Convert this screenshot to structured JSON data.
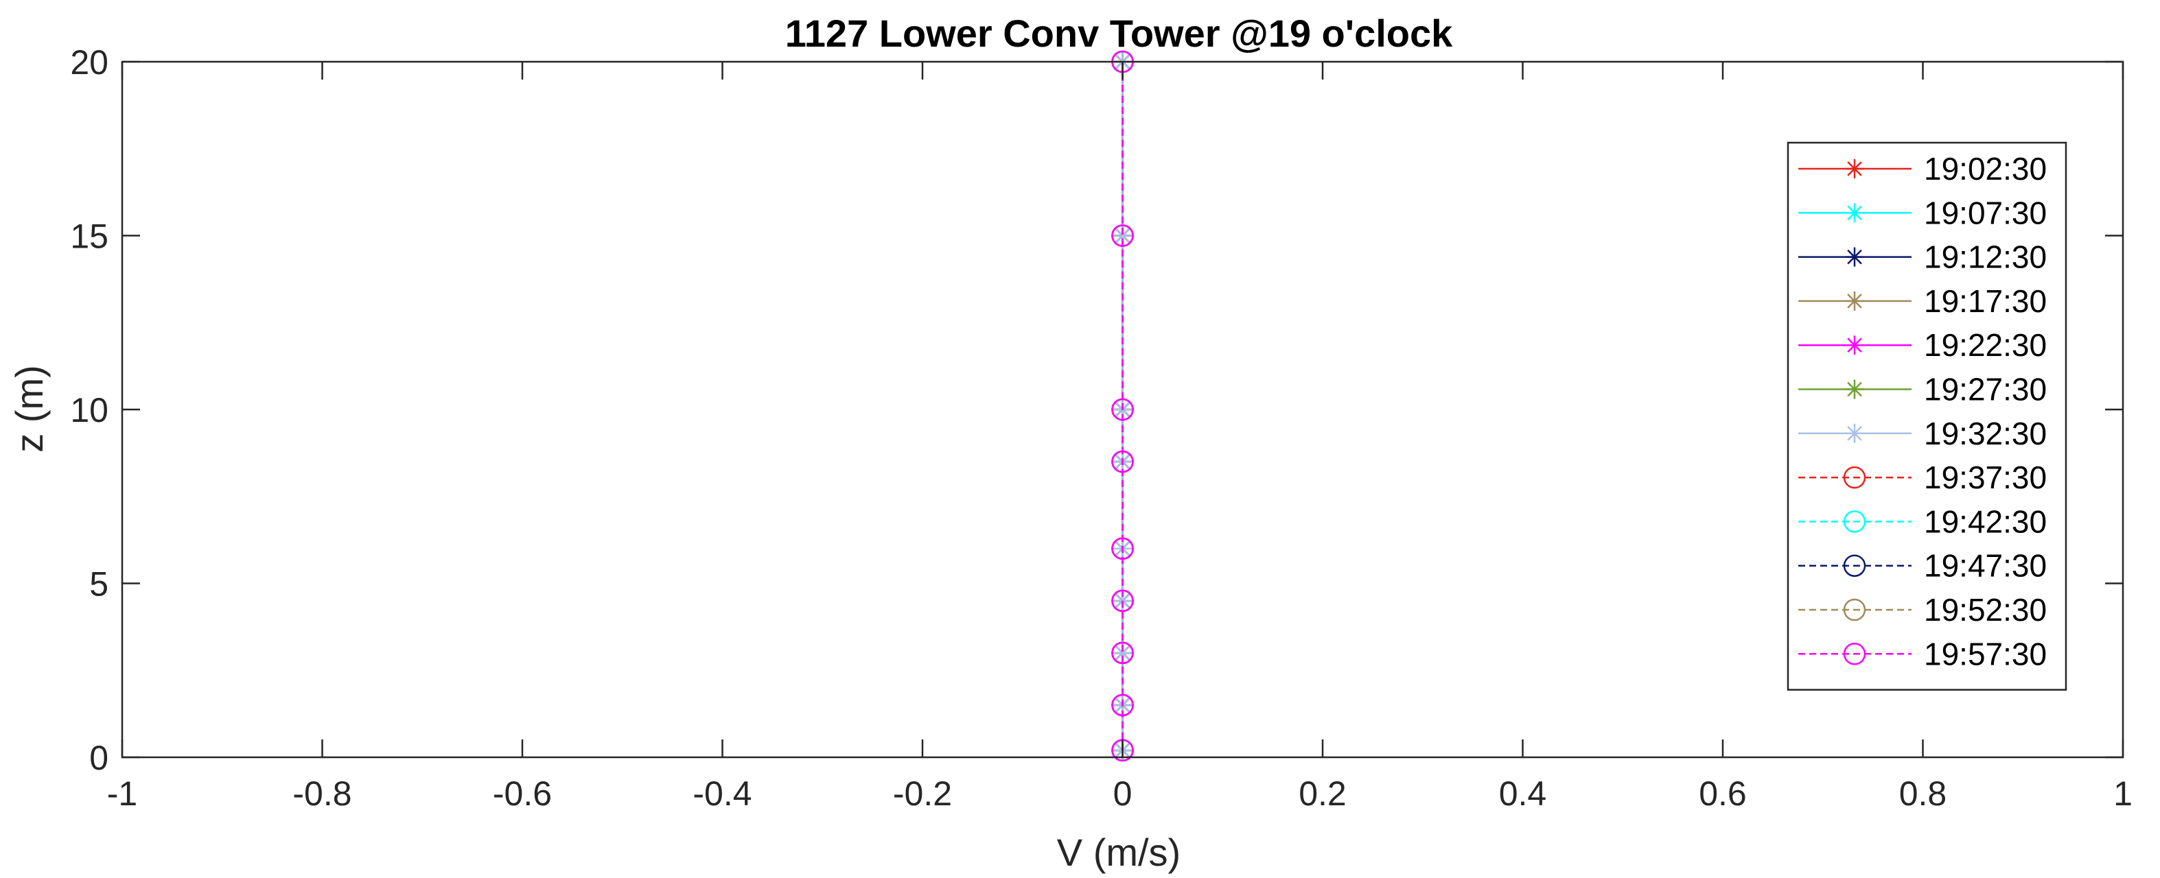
{
  "chart_data": {
    "type": "line",
    "title": "1127 Lower Conv Tower @19 o'clock",
    "xlabel": "V (m/s)",
    "ylabel": "z (m)",
    "xlim": [
      -1,
      1
    ],
    "ylim": [
      0,
      20
    ],
    "xticks": [
      "-1",
      "-0.8",
      "-0.6",
      "-0.4",
      "-0.2",
      "0",
      "0.2",
      "0.4",
      "0.6",
      "0.8",
      "1"
    ],
    "yticks": [
      "0",
      "5",
      "10",
      "15",
      "20"
    ],
    "grid": false,
    "legend_position": "top-right",
    "z_levels": [
      0.2,
      1.5,
      3,
      4.5,
      6,
      8.5,
      10,
      15,
      20
    ],
    "series": [
      {
        "name": "19:02:30",
        "color": "#e8231d",
        "marker": "asterisk",
        "linestyle": "solid",
        "values": [
          0,
          0,
          0,
          0,
          0,
          0,
          0,
          0,
          0
        ]
      },
      {
        "name": "19:07:30",
        "color": "#00ffff",
        "marker": "asterisk",
        "linestyle": "solid",
        "values": [
          0,
          0,
          0,
          0,
          0,
          0,
          0,
          0,
          0
        ]
      },
      {
        "name": "19:12:30",
        "color": "#0a1a6b",
        "marker": "asterisk",
        "linestyle": "solid",
        "values": [
          0,
          0,
          0,
          0,
          0,
          0,
          0,
          0,
          0
        ]
      },
      {
        "name": "19:17:30",
        "color": "#a08a5a",
        "marker": "asterisk",
        "linestyle": "solid",
        "values": [
          0,
          0,
          0,
          0,
          0,
          0,
          0,
          0,
          0
        ]
      },
      {
        "name": "19:22:30",
        "color": "#ff00ff",
        "marker": "asterisk",
        "linestyle": "solid",
        "values": [
          0,
          0,
          0,
          0,
          0,
          0,
          0,
          0,
          0
        ]
      },
      {
        "name": "19:27:30",
        "color": "#6fa232",
        "marker": "asterisk",
        "linestyle": "solid",
        "values": [
          0,
          0,
          0,
          0,
          0,
          0,
          0,
          0,
          0
        ]
      },
      {
        "name": "19:32:30",
        "color": "#a9c0e6",
        "marker": "asterisk",
        "linestyle": "solid",
        "values": [
          0,
          0,
          0,
          0,
          0,
          0,
          0,
          0,
          0
        ]
      },
      {
        "name": "19:37:30",
        "color": "#e8231d",
        "marker": "circle",
        "linestyle": "dashed",
        "values": [
          0,
          0,
          0,
          0,
          0,
          0,
          0,
          0,
          0
        ]
      },
      {
        "name": "19:42:30",
        "color": "#00ffff",
        "marker": "circle",
        "linestyle": "dashed",
        "values": [
          0,
          0,
          0,
          0,
          0,
          0,
          0,
          0,
          0
        ]
      },
      {
        "name": "19:47:30",
        "color": "#0a1a6b",
        "marker": "circle",
        "linestyle": "dashed",
        "values": [
          0,
          0,
          0,
          0,
          0,
          0,
          0,
          0,
          0
        ]
      },
      {
        "name": "19:52:30",
        "color": "#a08a5a",
        "marker": "circle",
        "linestyle": "dashed",
        "values": [
          0,
          0,
          0,
          0,
          0,
          0,
          0,
          0,
          0
        ]
      },
      {
        "name": "19:57:30",
        "color": "#ff00ff",
        "marker": "circle",
        "linestyle": "dashed",
        "values": [
          0,
          0,
          0,
          0,
          0,
          0,
          0,
          0,
          0
        ]
      }
    ]
  }
}
